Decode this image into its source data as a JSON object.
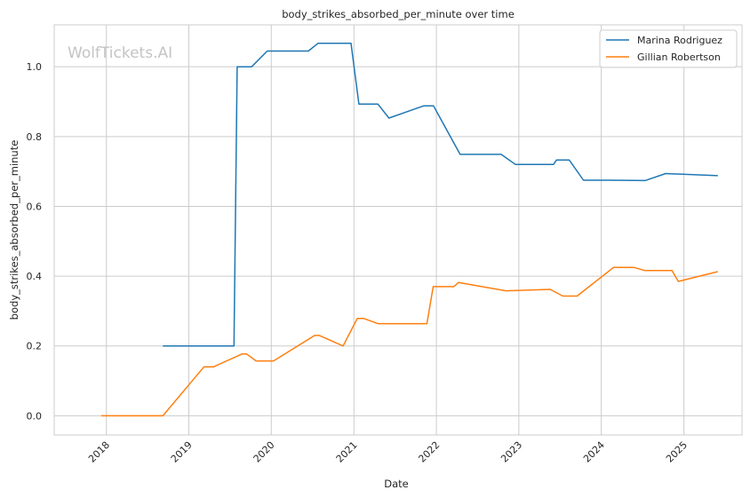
{
  "chart_data": {
    "type": "line",
    "title": "body_strikes_absorbed_per_minute over time",
    "xlabel": "Date",
    "ylabel": "body_strikes_absorbed_per_minute",
    "watermark": "WolfTickets.AI",
    "grid": true,
    "legend_position": "top-right",
    "xlim": [
      "2017-05-15",
      "2025-09-15"
    ],
    "ylim": [
      -0.055,
      1.12
    ],
    "x_ticks": [
      "2018",
      "2019",
      "2020",
      "2021",
      "2022",
      "2023",
      "2024",
      "2025"
    ],
    "y_ticks": [
      "0.0",
      "0.2",
      "0.4",
      "0.6",
      "0.8",
      "1.0"
    ],
    "series": [
      {
        "name": "Marina Rodriguez",
        "color": "#1f77b4",
        "points": [
          [
            "2018-09-08",
            0.2
          ],
          [
            "2019-07-20",
            0.2
          ],
          [
            "2019-08-03",
            1.0
          ],
          [
            "2019-10-06",
            1.0
          ],
          [
            "2019-12-14",
            1.045
          ],
          [
            "2020-06-13",
            1.045
          ],
          [
            "2020-07-26",
            1.067
          ],
          [
            "2020-12-19",
            1.067
          ],
          [
            "2021-01-23",
            0.893
          ],
          [
            "2021-04-17",
            0.893
          ],
          [
            "2021-06-05",
            0.853
          ],
          [
            "2021-11-06",
            0.888
          ],
          [
            "2021-12-19",
            0.888
          ],
          [
            "2022-04-16",
            0.749
          ],
          [
            "2022-10-15",
            0.749
          ],
          [
            "2022-12-17",
            0.72
          ],
          [
            "2023-06-03",
            0.72
          ],
          [
            "2023-06-17",
            0.733
          ],
          [
            "2023-08-12",
            0.733
          ],
          [
            "2023-10-14",
            0.675
          ],
          [
            "2024-02-03",
            0.675
          ],
          [
            "2024-07-13",
            0.674
          ],
          [
            "2024-10-12",
            0.694
          ],
          [
            "2025-05-31",
            0.688
          ]
        ]
      },
      {
        "name": "Gillian Robertson",
        "color": "#ff7f0e",
        "points": [
          [
            "2017-12-09",
            0.0
          ],
          [
            "2018-09-08",
            0.0
          ],
          [
            "2019-03-09",
            0.14
          ],
          [
            "2019-04-20",
            0.14
          ],
          [
            "2019-08-24",
            0.177
          ],
          [
            "2019-09-14",
            0.177
          ],
          [
            "2019-10-26",
            0.157
          ],
          [
            "2020-01-11",
            0.157
          ],
          [
            "2020-07-11",
            0.23
          ],
          [
            "2020-08-01",
            0.23
          ],
          [
            "2020-11-14",
            0.2
          ],
          [
            "2021-01-16",
            0.279
          ],
          [
            "2021-02-13",
            0.279
          ],
          [
            "2021-04-17",
            0.264
          ],
          [
            "2021-11-20",
            0.264
          ],
          [
            "2021-12-18",
            0.37
          ],
          [
            "2022-03-19",
            0.37
          ],
          [
            "2022-04-09",
            0.382
          ],
          [
            "2022-11-05",
            0.358
          ],
          [
            "2023-05-20",
            0.362
          ],
          [
            "2023-07-15",
            0.343
          ],
          [
            "2023-09-16",
            0.343
          ],
          [
            "2024-02-24",
            0.425
          ],
          [
            "2024-05-25",
            0.425
          ],
          [
            "2024-07-13",
            0.416
          ],
          [
            "2024-11-09",
            0.416
          ],
          [
            "2024-12-07",
            0.385
          ],
          [
            "2025-05-31",
            0.413
          ]
        ]
      }
    ]
  }
}
